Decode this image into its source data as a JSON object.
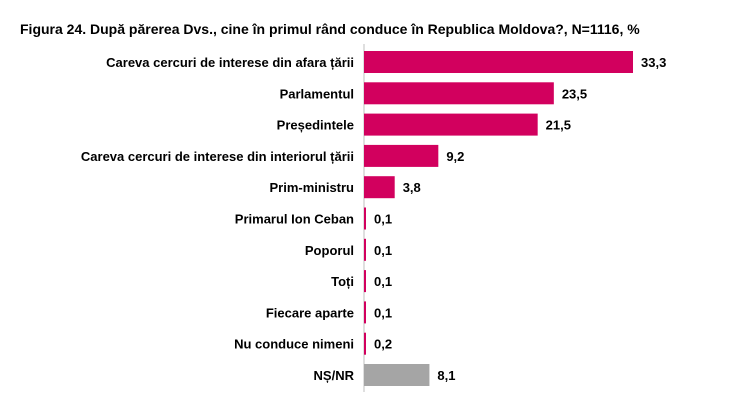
{
  "chart_data": {
    "type": "bar",
    "orientation": "horizontal",
    "title": "Figura 24. După părerea Dvs., cine în primul rând conduce în Republica Moldova?, N=1116, %",
    "categories": [
      "Careva cercuri de interese din afara țării",
      "Parlamentul",
      "Președintele",
      "Careva cercuri de interese din interiorul țării",
      "Prim-ministru",
      "Primarul Ion Ceban",
      "Poporul",
      "Toți",
      "Fiecare aparte",
      "Nu conduce nimeni",
      "NȘ/NR"
    ],
    "values": [
      33.3,
      23.5,
      21.5,
      9.2,
      3.8,
      0.1,
      0.1,
      0.1,
      0.1,
      0.2,
      8.1
    ],
    "value_labels": [
      "33,3",
      "23,5",
      "21,5",
      "9,2",
      "3,8",
      "0,1",
      "0,1",
      "0,1",
      "0,1",
      "0,2",
      "8,1"
    ],
    "colors": [
      "#d2005e",
      "#d2005e",
      "#d2005e",
      "#d2005e",
      "#d2005e",
      "#d2005e",
      "#d2005e",
      "#d2005e",
      "#d2005e",
      "#d2005e",
      "#a5a5a5"
    ],
    "xlim": [
      0,
      35
    ],
    "grid": false,
    "legend": false
  }
}
